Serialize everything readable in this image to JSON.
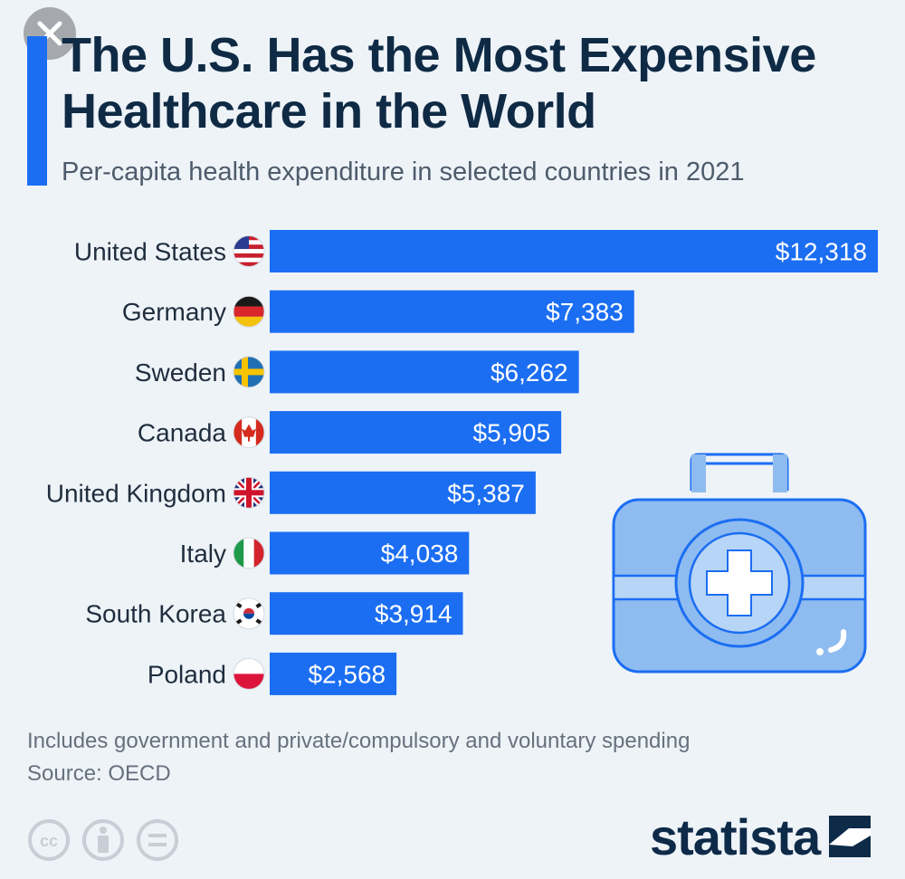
{
  "header": {
    "title": "The U.S. Has the Most Expensive Healthcare in the World",
    "subtitle": "Per-capita health expenditure in selected countries in 2021"
  },
  "footer": {
    "note": "Includes government and private/compulsory and voluntary spending",
    "source": "Source: OECD",
    "brand": "statista",
    "license_icons": [
      "cc-icon",
      "attribution-icon",
      "no-derivatives-icon"
    ]
  },
  "colors": {
    "bar": "#1b6ef2",
    "title": "#0f2a44",
    "background": "#eef3f8",
    "illustration": "#8fbcf0"
  },
  "chart_data": {
    "type": "bar",
    "orientation": "horizontal",
    "categories": [
      "United States",
      "Germany",
      "Sweden",
      "Canada",
      "United Kingdom",
      "Italy",
      "South Korea",
      "Poland"
    ],
    "values": [
      12318,
      7383,
      6262,
      5905,
      5387,
      4038,
      3914,
      2568
    ],
    "value_labels": [
      "$12,318",
      "$7,383",
      "$6,262",
      "$5,905",
      "$5,387",
      "$4,038",
      "$3,914",
      "$2,568"
    ],
    "flags": [
      "us",
      "de",
      "se",
      "ca",
      "gb",
      "it",
      "kr",
      "pl"
    ],
    "title": "The U.S. Has the Most Expensive Healthcare in the World",
    "subtitle": "Per-capita health expenditure in selected countries in 2021",
    "xlabel": "",
    "ylabel": "",
    "xlim": [
      0,
      12318
    ],
    "grid": false,
    "legend": "none"
  }
}
